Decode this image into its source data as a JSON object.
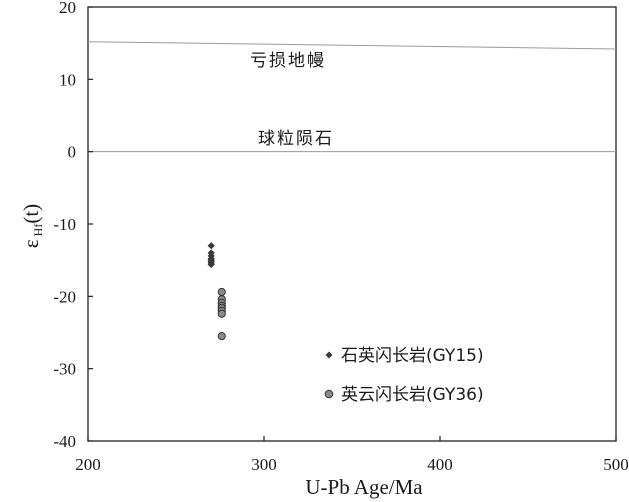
{
  "chart_data": {
    "type": "scatter",
    "xlabel": "U-Pb Age/Ma",
    "ylabel": {
      "prefix": "ε",
      "sub": "Hf",
      "suffix": "(t)"
    },
    "xlim": [
      200,
      500
    ],
    "ylim": [
      -40,
      20
    ],
    "xticks": [
      200,
      300,
      400,
      500
    ],
    "yticks": [
      20,
      10,
      0,
      -10,
      -20,
      -30,
      -40
    ],
    "grid": false,
    "legend_position": "bottom-right",
    "reference_lines": [
      {
        "label": "亏损地幔",
        "x": [
          200,
          500
        ],
        "y": [
          15.2,
          14.2
        ],
        "color": "#9a9a9a"
      },
      {
        "label": "球粒陨石",
        "x": [
          200,
          500
        ],
        "y": [
          0,
          0
        ],
        "color": "#9a9a9a"
      }
    ],
    "series": [
      {
        "name": "石英闪长岩(GY15)",
        "marker": "diamond",
        "color": "#3a3a3a",
        "x": [
          270,
          270,
          270,
          270,
          270,
          270,
          270,
          270
        ],
        "y": [
          -13.0,
          -14.0,
          -14.4,
          -14.8,
          -15.0,
          -15.2,
          -15.4,
          -15.6
        ]
      },
      {
        "name": "英云闪长岩(GY36)",
        "marker": "circle",
        "color": "#8a8a8a",
        "x": [
          276,
          276,
          276,
          276,
          276,
          276,
          276,
          276
        ],
        "y": [
          -19.4,
          -20.4,
          -20.9,
          -21.3,
          -21.6,
          -22.0,
          -22.4,
          -25.5
        ]
      }
    ]
  }
}
